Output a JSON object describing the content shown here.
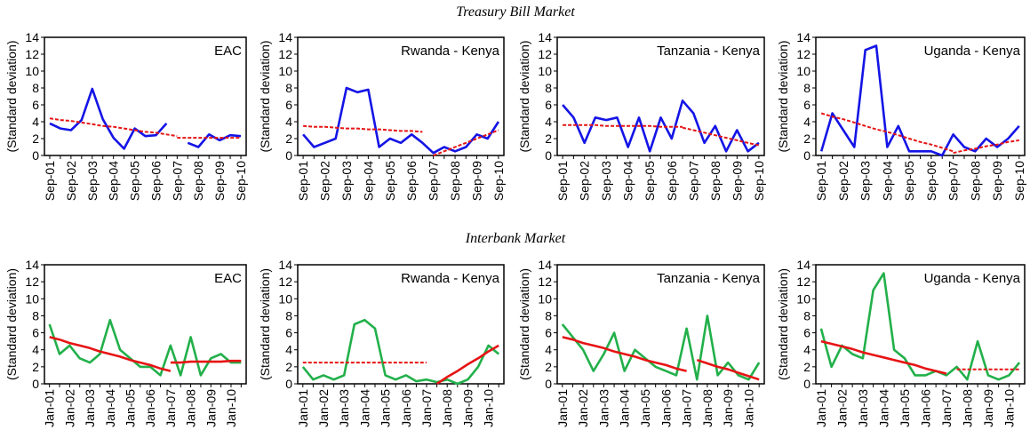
{
  "section_titles": [
    "Treasury Bill Market",
    "Interbank Market"
  ],
  "chart_data": [
    {
      "type": "line",
      "title": "EAC",
      "ylabel": "(Standard deviation)",
      "categories": [
        "Sep-01",
        null,
        "Sep-02",
        null,
        "Sep-03",
        null,
        "Sep-04",
        null,
        "Sep-05",
        null,
        "Sep-06",
        null,
        "Sep-07",
        null,
        "Sep-08",
        null,
        "Sep-09",
        null,
        "Sep-10"
      ],
      "ylim": [
        0,
        14
      ],
      "yticks": [
        0,
        2,
        4,
        6,
        8,
        10,
        12,
        14
      ],
      "series": [
        {
          "color": "#1414e6",
          "values": [
            3.8,
            3.2,
            3.0,
            4.2,
            7.9,
            4.3,
            2.1,
            0.8,
            3.2,
            2.3,
            2.4,
            3.8,
            null,
            1.5,
            1.0,
            2.5,
            1.8,
            2.4,
            2.3
          ]
        },
        {
          "color": "#e61414",
          "dashed": true,
          "values": [
            4.4,
            4.2,
            4.1,
            3.9,
            3.7,
            3.5,
            3.4,
            3.2,
            3.0,
            2.8,
            2.7,
            2.5,
            2.3,
            null,
            null,
            null,
            null,
            null,
            null
          ]
        },
        {
          "color": "#e61414",
          "dashed": true,
          "values": [
            null,
            null,
            null,
            null,
            null,
            null,
            null,
            null,
            null,
            null,
            null,
            null,
            2.1,
            2.1,
            2.1,
            2.1,
            2.1,
            2.1,
            2.1
          ]
        }
      ]
    },
    {
      "type": "line",
      "title": "Rwanda - Kenya",
      "ylabel": "(Standard deviation)",
      "categories": [
        "Sep-01",
        null,
        "Sep-02",
        null,
        "Sep-03",
        null,
        "Sep-04",
        null,
        "Sep-05",
        null,
        "Sep-06",
        null,
        "Sep-07",
        null,
        "Sep-08",
        null,
        "Sep-09",
        null,
        "Sep-10"
      ],
      "ylim": [
        0,
        14
      ],
      "yticks": [
        0,
        2,
        4,
        6,
        8,
        10,
        12,
        14
      ],
      "series": [
        {
          "color": "#1414e6",
          "values": [
            2.5,
            1.0,
            1.5,
            2.0,
            8.0,
            7.5,
            7.8,
            1.0,
            2.0,
            1.5,
            2.5,
            1.5,
            0.3,
            1.0,
            0.5,
            1.0,
            2.5,
            2.0,
            4.0
          ]
        },
        {
          "color": "#e61414",
          "dashed": true,
          "values": [
            3.5,
            3.4,
            3.4,
            3.3,
            3.2,
            3.2,
            3.1,
            3.1,
            3.0,
            2.9,
            2.9,
            2.8,
            null,
            null,
            null,
            null,
            null,
            null,
            null
          ]
        },
        {
          "color": "#e61414",
          "dashed": true,
          "values": [
            null,
            null,
            null,
            null,
            null,
            null,
            null,
            null,
            null,
            null,
            null,
            null,
            0,
            0.5,
            1,
            1.5,
            2,
            2.5,
            3
          ]
        }
      ]
    },
    {
      "type": "line",
      "title": "Tanzania - Kenya",
      "ylabel": "(Standard deviation)",
      "categories": [
        "Sep-01",
        null,
        "Sep-02",
        null,
        "Sep-03",
        null,
        "Sep-04",
        null,
        "Sep-05",
        null,
        "Sep-06",
        null,
        "Sep-07",
        null,
        "Sep-08",
        null,
        "Sep-09",
        null,
        "Sep-10"
      ],
      "ylim": [
        0,
        14
      ],
      "yticks": [
        0,
        2,
        4,
        6,
        8,
        10,
        12,
        14
      ],
      "series": [
        {
          "color": "#1414e6",
          "values": [
            6.0,
            4.5,
            1.5,
            4.5,
            4.2,
            4.5,
            1.0,
            4.5,
            0.5,
            4.5,
            2.0,
            6.5,
            5.0,
            1.5,
            3.5,
            0.5,
            3.0,
            0.5,
            1.5
          ]
        },
        {
          "color": "#e61414",
          "dashed": true,
          "values": [
            3.6,
            3.6,
            3.6,
            3.6,
            3.5,
            3.5,
            3.5,
            3.5,
            3.5,
            3.4,
            3.4,
            3.4,
            null,
            null,
            null,
            null,
            null,
            null,
            null
          ]
        },
        {
          "color": "#e61414",
          "dashed": true,
          "values": [
            null,
            null,
            null,
            null,
            null,
            null,
            null,
            null,
            null,
            null,
            null,
            3.3,
            3.0,
            2.7,
            2.4,
            2.1,
            1.8,
            1.5,
            1.2
          ]
        }
      ]
    },
    {
      "type": "line",
      "title": "Uganda - Kenya",
      "ylabel": "(Standard deviation)",
      "categories": [
        "Sep-01",
        null,
        "Sep-02",
        null,
        "Sep-03",
        null,
        "Sep-04",
        null,
        "Sep-05",
        null,
        "Sep-06",
        null,
        "Sep-07",
        null,
        "Sep-08",
        null,
        "Sep-09",
        null,
        "Sep-10"
      ],
      "ylim": [
        0,
        14
      ],
      "yticks": [
        0,
        2,
        4,
        6,
        8,
        10,
        12,
        14
      ],
      "series": [
        {
          "color": "#1414e6",
          "values": [
            0.5,
            5.0,
            3.0,
            1.0,
            12.5,
            13.0,
            1.0,
            3.5,
            0.5,
            0.5,
            0.5,
            0.0,
            2.5,
            1.0,
            0.5,
            2.0,
            1.0,
            2.0,
            3.5
          ]
        },
        {
          "color": "#e61414",
          "dashed": true,
          "values": [
            5.0,
            4.6,
            4.3,
            3.9,
            3.5,
            3.1,
            2.8,
            2.4,
            2.0,
            1.6,
            1.3,
            0.9,
            0.5,
            null,
            null,
            null,
            null,
            null,
            null
          ]
        },
        {
          "color": "#e61414",
          "dashed": true,
          "values": [
            null,
            null,
            null,
            null,
            null,
            null,
            null,
            null,
            null,
            null,
            null,
            null,
            0.3,
            0.6,
            0.8,
            1.1,
            1.3,
            1.6,
            1.8
          ]
        }
      ]
    },
    {
      "type": "line",
      "title": "EAC",
      "ylabel": "(Standard deviation)",
      "categories": [
        "Jan-01",
        null,
        "Jan-02",
        null,
        "Jan-03",
        null,
        "Jan-04",
        null,
        "Jan-05",
        null,
        "Jan-06",
        null,
        "Jan-07",
        null,
        "Jan-08",
        null,
        "Jan-09",
        null,
        "Jan-10",
        null
      ],
      "ylim": [
        0,
        14
      ],
      "yticks": [
        0,
        2,
        4,
        6,
        8,
        10,
        12,
        14
      ],
      "series": [
        {
          "color": "#22b04a",
          "values": [
            7.0,
            3.5,
            4.5,
            3.0,
            2.5,
            3.5,
            7.5,
            4.0,
            3.0,
            2.0,
            2.0,
            1.0,
            4.5,
            1.0,
            5.5,
            1.0,
            3.0,
            3.5,
            2.5,
            2.5
          ]
        },
        {
          "color": "#e61414",
          "values": [
            5.5,
            5.2,
            4.8,
            4.5,
            4.2,
            3.8,
            3.5,
            3.2,
            2.8,
            2.5,
            2.2,
            1.8,
            1.5,
            null,
            null,
            null,
            null,
            null,
            null,
            null
          ]
        },
        {
          "color": "#e61414",
          "values": [
            null,
            null,
            null,
            null,
            null,
            null,
            null,
            null,
            null,
            null,
            null,
            null,
            2.5,
            2.5,
            2.6,
            2.6,
            2.6,
            2.6,
            2.7,
            2.7
          ]
        }
      ]
    },
    {
      "type": "line",
      "title": "Rwanda - Kenya",
      "ylabel": "(Standard deviation)",
      "categories": [
        "Jan-01",
        null,
        "Jan-02",
        null,
        "Jan-03",
        null,
        "Jan-04",
        null,
        "Jan-05",
        null,
        "Jan-06",
        null,
        "Jan-07",
        null,
        "Jan-08",
        null,
        "Jan-09",
        null,
        "Jan-10",
        null
      ],
      "ylim": [
        0,
        14
      ],
      "yticks": [
        0,
        2,
        4,
        6,
        8,
        10,
        12,
        14
      ],
      "series": [
        {
          "color": "#22b04a",
          "values": [
            2.0,
            0.5,
            1.0,
            0.5,
            1.0,
            7.0,
            7.5,
            6.5,
            1.0,
            0.5,
            1.0,
            0.3,
            0.5,
            0.2,
            0.5,
            0.0,
            0.5,
            2.0,
            4.5,
            3.5
          ]
        },
        {
          "color": "#e61414",
          "dashed": true,
          "values": [
            2.5,
            2.5,
            2.5,
            2.5,
            2.5,
            2.5,
            2.5,
            2.5,
            2.5,
            2.5,
            2.5,
            2.5,
            2.5,
            null,
            null,
            null,
            null,
            null,
            null,
            null
          ]
        },
        {
          "color": "#e61414",
          "values": [
            null,
            null,
            null,
            null,
            null,
            null,
            null,
            null,
            null,
            null,
            null,
            null,
            null,
            0,
            0.8,
            1.5,
            2.3,
            3.0,
            3.8,
            4.5
          ]
        }
      ]
    },
    {
      "type": "line",
      "title": "Tanzania - Kenya",
      "ylabel": "(Standard deviation)",
      "categories": [
        "Jan-01",
        null,
        "Jan-02",
        null,
        "Jan-03",
        null,
        "Jan-04",
        null,
        "Jan-05",
        null,
        "Jan-06",
        null,
        "Jan-07",
        null,
        "Jan-08",
        null,
        "Jan-09",
        null,
        "Jan-10",
        null
      ],
      "ylim": [
        0,
        14
      ],
      "yticks": [
        0,
        2,
        4,
        6,
        8,
        10,
        12,
        14
      ],
      "series": [
        {
          "color": "#22b04a",
          "values": [
            7.0,
            5.5,
            4.0,
            1.5,
            3.5,
            6.0,
            1.5,
            4.0,
            3.0,
            2.0,
            1.5,
            1.0,
            6.5,
            0.5,
            8.0,
            1.0,
            2.5,
            1.0,
            0.5,
            2.5
          ]
        },
        {
          "color": "#e61414",
          "values": [
            5.5,
            5.2,
            4.8,
            4.5,
            4.2,
            3.8,
            3.5,
            3.2,
            2.8,
            2.5,
            2.2,
            1.8,
            1.5,
            null,
            null,
            null,
            null,
            null,
            null,
            null
          ]
        },
        {
          "color": "#e61414",
          "values": [
            null,
            null,
            null,
            null,
            null,
            null,
            null,
            null,
            null,
            null,
            null,
            null,
            null,
            2.8,
            2.4,
            2.0,
            1.7,
            1.3,
            0.9,
            0.5
          ]
        }
      ]
    },
    {
      "type": "line",
      "title": "Uganda - Kenya",
      "ylabel": "(Standard deviation)",
      "categories": [
        "Jan-01",
        null,
        "Jan-02",
        null,
        "Jan-03",
        null,
        "Jan-04",
        null,
        "Jan-05",
        null,
        "Jan-06",
        null,
        "Jan-07",
        null,
        "Jan-08",
        null,
        "Jan-09",
        null,
        "Jan-10",
        null
      ],
      "ylim": [
        0,
        14
      ],
      "yticks": [
        0,
        2,
        4,
        6,
        8,
        10,
        12,
        14
      ],
      "series": [
        {
          "color": "#22b04a",
          "values": [
            6.5,
            2.0,
            4.5,
            3.5,
            3.0,
            11.0,
            13.0,
            4.0,
            3.0,
            1.0,
            1.0,
            1.5,
            1.0,
            2.0,
            0.5,
            5.0,
            1.0,
            0.5,
            1.0,
            2.5
          ]
        },
        {
          "color": "#e61414",
          "values": [
            5.0,
            4.7,
            4.4,
            4.1,
            3.7,
            3.4,
            3.1,
            2.8,
            2.5,
            2.2,
            1.8,
            1.5,
            1.2,
            null,
            null,
            null,
            null,
            null,
            null,
            null
          ]
        },
        {
          "color": "#e61414",
          "dashed": true,
          "values": [
            null,
            null,
            null,
            null,
            null,
            null,
            null,
            null,
            null,
            null,
            null,
            null,
            null,
            1.7,
            1.7,
            1.7,
            1.7,
            1.7,
            1.7,
            1.7
          ]
        }
      ]
    }
  ]
}
